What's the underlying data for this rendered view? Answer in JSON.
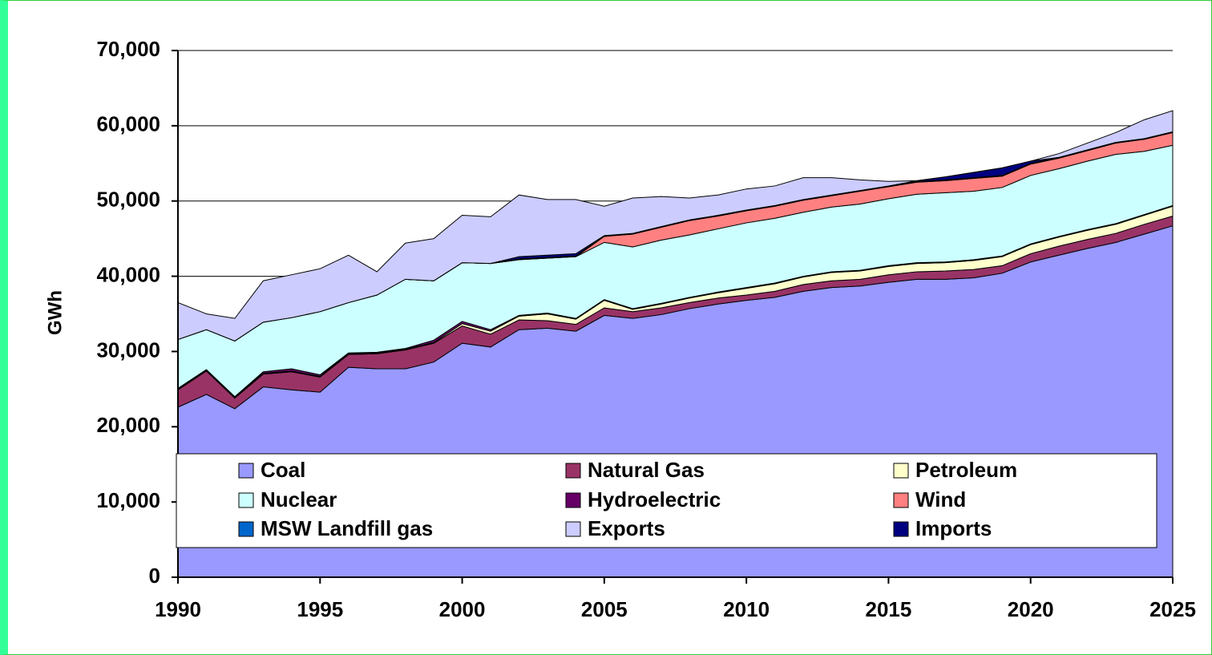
{
  "chart_data": {
    "type": "stacked_area",
    "y_label": "GWh",
    "x": [
      1990,
      1991,
      1992,
      1993,
      1994,
      1995,
      1996,
      1997,
      1998,
      1999,
      2000,
      2001,
      2002,
      2003,
      2004,
      2005,
      2006,
      2007,
      2008,
      2009,
      2010,
      2011,
      2012,
      2013,
      2014,
      2015,
      2016,
      2017,
      2018,
      2019,
      2020,
      2021,
      2022,
      2023,
      2024,
      2025
    ],
    "xlim": [
      1990,
      2025
    ],
    "xticks": [
      1990,
      1995,
      2000,
      2005,
      2010,
      2015,
      2020,
      2025
    ],
    "ylim": [
      0,
      70000
    ],
    "yticks": [
      0,
      {
        "value": 10000,
        "label": "10,000"
      },
      {
        "value": 20000,
        "label": "20,000"
      },
      {
        "value": 30000,
        "label": "30,000"
      },
      {
        "value": 40000,
        "label": "40,000"
      },
      {
        "value": 50000,
        "label": "50,000"
      },
      {
        "value": 60000,
        "label": "60,000"
      },
      {
        "value": 70000,
        "label": "70,000"
      }
    ],
    "grid": true,
    "series": [
      {
        "name": "Coal",
        "color": "#9999ff",
        "values": [
          22600,
          24300,
          22400,
          25300,
          24900,
          24600,
          27900,
          27700,
          27700,
          28600,
          31100,
          30600,
          32900,
          33100,
          32700,
          34800,
          34400,
          34900,
          35700,
          36300,
          36800,
          37200,
          38000,
          38500,
          38700,
          39200,
          39600,
          39600,
          39800,
          40400,
          41900,
          42800,
          43700,
          44500,
          45600,
          46700
        ]
      },
      {
        "name": "Natural Gas",
        "color": "#993366",
        "values": [
          2300,
          3100,
          1400,
          1700,
          2400,
          2000,
          1700,
          2000,
          2500,
          2500,
          2300,
          1700,
          1300,
          1000,
          900,
          1000,
          900,
          900,
          800,
          800,
          700,
          800,
          900,
          900,
          900,
          1000,
          1000,
          1100,
          1100,
          1000,
          1100,
          1200,
          1200,
          1200,
          1300,
          1300
        ]
      },
      {
        "name": "Petroleum",
        "color": "#ffffcc",
        "values": [
          100,
          100,
          100,
          100,
          100,
          100,
          100,
          100,
          100,
          100,
          300,
          400,
          500,
          900,
          700,
          1000,
          300,
          500,
          600,
          700,
          900,
          1000,
          1000,
          1100,
          1100,
          1100,
          1100,
          1100,
          1200,
          1200,
          1200,
          1200,
          1200,
          1200,
          1200,
          1300
        ]
      },
      {
        "name": "Hydroelectric",
        "color": "#660066",
        "values": [
          100,
          100,
          100,
          200,
          300,
          200,
          100,
          100,
          100,
          300,
          300,
          200,
          100,
          100,
          100,
          100,
          100,
          100,
          100,
          100,
          100,
          100,
          100,
          100,
          100,
          100,
          100,
          100,
          100,
          100,
          100,
          100,
          100,
          100,
          100,
          100
        ]
      },
      {
        "name": "Nuclear",
        "color": "#ccffff",
        "values": [
          6500,
          5300,
          7400,
          6600,
          6800,
          8400,
          6700,
          7600,
          9200,
          7900,
          7800,
          8800,
          7400,
          7300,
          8200,
          7600,
          8200,
          8400,
          8300,
          8400,
          8600,
          8600,
          8500,
          8600,
          8800,
          8900,
          9100,
          9200,
          9100,
          9100,
          9100,
          9000,
          9100,
          9200,
          8400,
          8000
        ]
      },
      {
        "name": "Wind",
        "color": "#ff8080",
        "values": [
          0,
          0,
          0,
          0,
          0,
          0,
          0,
          0,
          0,
          0,
          0,
          0,
          0,
          0,
          0,
          800,
          1700,
          1700,
          1900,
          1700,
          1600,
          1600,
          1600,
          1500,
          1700,
          1600,
          1600,
          1600,
          1700,
          1500,
          1500,
          1400,
          1400,
          1500,
          1600,
          1700
        ]
      },
      {
        "name": "MSW Landfill gas",
        "color": "#0066cc",
        "values": [
          0,
          0,
          0,
          0,
          0,
          0,
          0,
          0,
          0,
          0,
          0,
          0,
          100,
          100,
          100,
          100,
          100,
          100,
          100,
          100,
          100,
          100,
          100,
          100,
          100,
          100,
          100,
          100,
          100,
          100,
          100,
          100,
          100,
          100,
          100,
          100
        ]
      },
      {
        "name": "Imports",
        "color": "#000080",
        "values": [
          0,
          0,
          0,
          0,
          0,
          0,
          0,
          0,
          0,
          0,
          0,
          0,
          300,
          300,
          300,
          0,
          0,
          0,
          0,
          0,
          0,
          0,
          0,
          0,
          0,
          0,
          100,
          400,
          700,
          1000,
          300,
          0,
          0,
          0,
          0,
          0
        ]
      },
      {
        "name": "Exports",
        "color": "#ccccff",
        "values": [
          4900,
          2100,
          3000,
          5500,
          5700,
          5700,
          6300,
          3100,
          4800,
          5600,
          6300,
          6200,
          8200,
          7400,
          7200,
          3900,
          4700,
          4000,
          2900,
          2700,
          2800,
          2600,
          2900,
          2300,
          1400,
          600,
          0,
          0,
          0,
          0,
          0,
          500,
          900,
          1300,
          2500,
          2800
        ]
      }
    ]
  }
}
